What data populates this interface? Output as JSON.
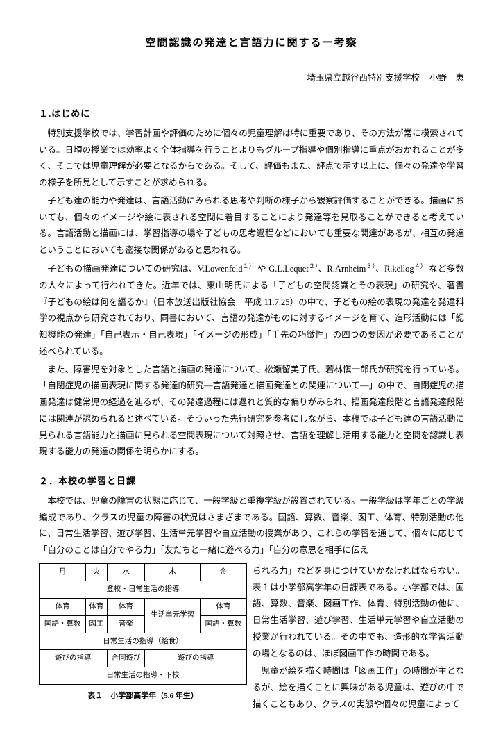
{
  "title": "空間認識の発達と言語力に関する一考察",
  "affiliation": "埼玉県立越谷西特別支援学校",
  "author": "小野　恵",
  "section1": {
    "heading": "１.はじめに",
    "p1": "特別支援学校では、学習計画や評価のために個々の児童理解は特に重要であり、その方法が常に模索されている。日頃の授業では効率よく全体指導を行うことよりもグループ指導や個別指導に重点がおかれることが多く、そこでは児童理解が必要となるからである。そして、評価もまた、評点で示す以上に、個々の発達や学習の様子を所見として示すことが求められる。",
    "p2": "子ども達の能力や発達は、言語活動にみられる思考や判断の様子から観察評価することができる。描画においても、個々のイメージや絵に表される空間に着目することにより発達等を見取ることができると考えている。言語活動と描画には、学習指導の場や子どもの思考過程などにおいても重要な関連があるが、相互の発達ということにおいても密接な関係があると思われる。",
    "p3_pre": "子どもの描画発達についての研究は、V.Lowenfeld",
    "p3_s1": "１）",
    "p3_a": " や G.L.Lequet",
    "p3_s2": "２）",
    "p3_b": "、R.Arnheim",
    "p3_s3": "３）",
    "p3_c": "、R.kellog",
    "p3_s4": "４）",
    "p3_post": " など多数の人々によって行われてきた。近年では、東山明氏による「子どもの空間認識とその表現」の研究や、著書『子どもの絵は何を語るか』（日本放送出版社協会　平成 11.7.25）の中で、子どもの絵の表現の発達を発達科学の視点から研究されており、同書において、言語の発達がものに対するイメージを育て、造形活動には「認知機能の発達」「自己表示・自己表現」「イメージの形成」「手先の巧緻性」の四つの要因が必要であることが述べられている。",
    "p4": "また、障害児を対象とした言語と描画の発達について、松瀬留美子氏、若林愼一郎氏が研究を行っている。「自閉症児の描画表現に関する発達的研究―言語発達と描画発達との関連について―」の中で、自閉症児の描画発達は健常児の経過を辿るが、その発達過程には遅れと質的な偏りがみられ、描画発達段階と言語発達段階には関連が認められると述べている。そういった先行研究を参考にしながら、本稿では子ども達の言語活動に見られる言語能力と描画に見られる空間表現について対照させ、言語を理解し活用する能力と空間を認識し表現する能力の発達の関係を明らかにする。"
  },
  "section2": {
    "heading": "２．本校の学習と日課",
    "p1": "本校では、児童の障害の状態に応じて、一般学級と重複学級が設置されている。一般学級は学年ごとの学級編成であり、クラスの児童の障害の状況はさまざまである。国語、算数、音楽、図工、体育、特別活動の他に、日常生活学習、遊び学習、生活単元学習や自立活動の授業があり、これらの学習を通して、個々に応じて「自分のことは自分でやる力」「友だちと一緒に遊べる力」「自分の意思を相手に伝え",
    "side_p1": "られる力」などを身につけていかなければならない。表１は小学部高学年の日課表である。小学部では、国語、算数、音楽、図画工作、体育、特別活動の他に、日常生活学習、遊び学習、生活単元学習や自立活動の授業が行われている。その中でも、造形的な学習活動の場となるのは、ほぼ図画工作の時間である。",
    "side_p2": "児童が絵を描く時間は「図画工作」の時間が主となるが、絵を描くことに興味がある児童は、遊びの中で描くこともあり、クラスの実態や個々の児童によって"
  },
  "table": {
    "caption": "表１　小学部高学年（5.6 年生）",
    "header": [
      "月",
      "火",
      "水",
      "木",
      "金"
    ],
    "row2": "登校・日常生活の指導",
    "row3": [
      "体育",
      "体育",
      "体育",
      "生活単元学習",
      "体育"
    ],
    "row4": [
      "国語・算数",
      "図工",
      "音楽",
      "国語・算数"
    ],
    "row5": "日常生活の指導（給食）",
    "row6": [
      "遊びの指導",
      "合同遊び",
      "遊びの指導"
    ],
    "row7": "日常生活の指導・下校"
  }
}
